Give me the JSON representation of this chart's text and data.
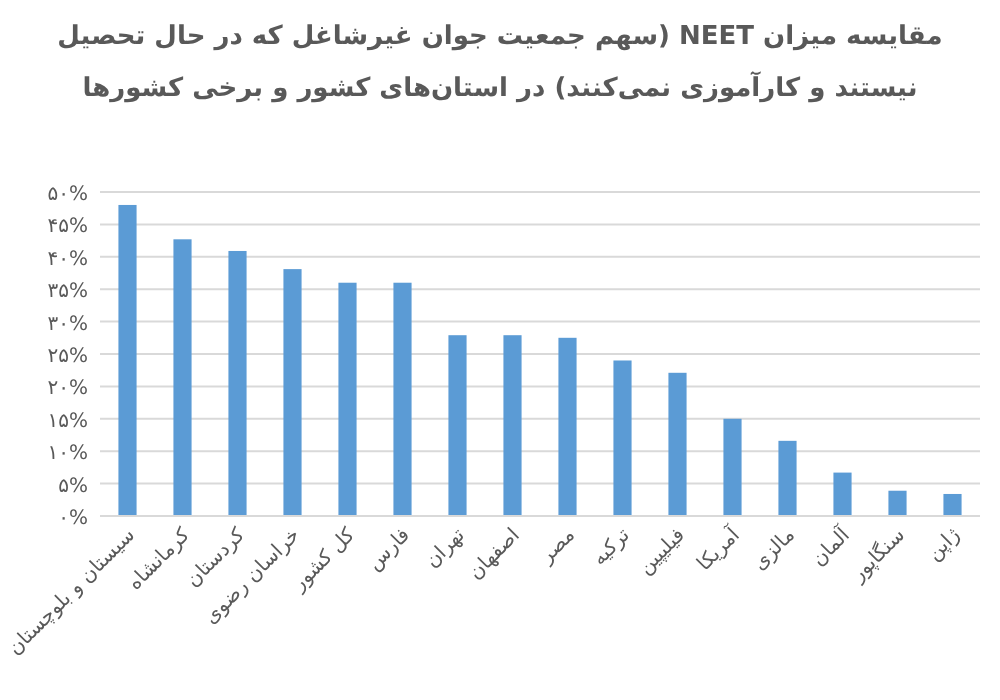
{
  "chart_data": {
    "type": "bar",
    "title": "مقایسه میزان NEET (سهم جمعیت جوان غیرشاغل که در حال تحصیل\nنیستند و کارآموزی نمی‌کنند) در  استان‌های کشور و برخی کشورها",
    "categories": [
      "سیستان و بلوچستان",
      "کرمانشاه",
      "کردستان",
      "خراسان رضوی",
      "کل کشور",
      "فارس",
      "تهران",
      "اصفهان",
      "مصر",
      "ترکیه",
      "فیلیپین",
      "آمریکا",
      "مالزی",
      "آلمان",
      "سنگاپور",
      "ژاپن"
    ],
    "values": [
      48.0,
      42.7,
      40.9,
      38.1,
      36.0,
      36.0,
      27.9,
      27.9,
      27.5,
      24.0,
      22.1,
      15.0,
      11.6,
      6.7,
      3.9,
      3.4
    ],
    "color": "#5b9bd5",
    "ylim": [
      0,
      50
    ],
    "yticks": [
      {
        "value": 0,
        "label": "۰%"
      },
      {
        "value": 5,
        "label": "۵%"
      },
      {
        "value": 10,
        "label": "۱۰%"
      },
      {
        "value": 15,
        "label": "۱۵%"
      },
      {
        "value": 20,
        "label": "۲۰%"
      },
      {
        "value": 25,
        "label": "۲۵%"
      },
      {
        "value": 30,
        "label": "۳۰%"
      },
      {
        "value": 35,
        "label": "۳۵%"
      },
      {
        "value": 40,
        "label": "۴۰%"
      },
      {
        "value": 45,
        "label": "۴۵%"
      },
      {
        "value": 50,
        "label": "۵۰%"
      }
    ],
    "grid": "y"
  }
}
